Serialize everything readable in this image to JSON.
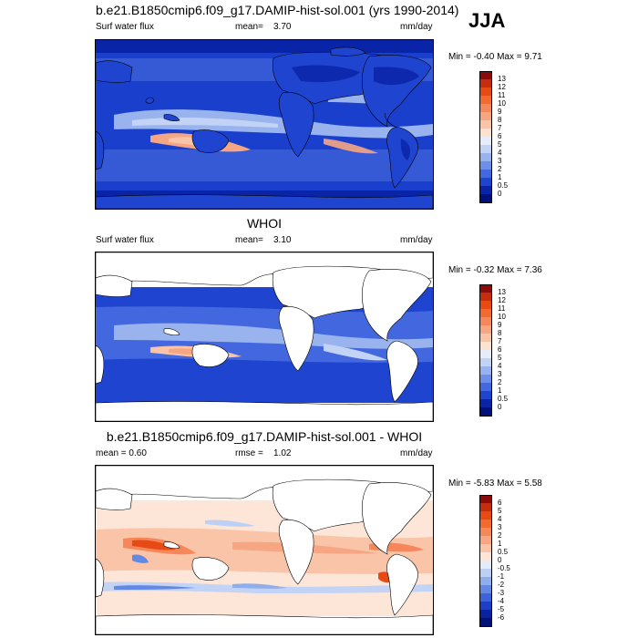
{
  "season": "JJA",
  "panels": [
    {
      "title": "b.e21.B1850cmip6.f09_g17.DAMIP-hist-sol.001 (yrs 1990-2014)",
      "left_label": "Surf water flux",
      "stat_label": "mean=",
      "stat_value": "3.70",
      "units": "mm/day",
      "minmax": "Min =  -0.40 Max =   9.71"
    },
    {
      "title": "WHOI",
      "left_label": "Surf water flux",
      "stat_label": "mean=",
      "stat_value": "3.10",
      "units": "mm/day",
      "minmax": "Min =  -0.32 Max =   7.36"
    },
    {
      "title": "b.e21.B1850cmip6.f09_g17.DAMIP-hist-sol.001 - WHOI",
      "left_label": "mean =   0.60",
      "stat_label": "rmse =",
      "stat_value": "1.02",
      "units": "mm/day",
      "minmax": "Min =  -5.83 Max =   5.58"
    }
  ],
  "colorbars": [
    {
      "ticks": [
        "13",
        "12",
        "11",
        "10",
        "9",
        "8",
        "7",
        "6",
        "5",
        "4",
        "3",
        "2",
        "1",
        "0.5",
        "0"
      ],
      "colors": [
        "#8b0a0a",
        "#c42e0e",
        "#e84a16",
        "#f26a30",
        "#f5875a",
        "#f7a683",
        "#fac4a8",
        "#fde2d2",
        "#e6ecfa",
        "#c2d3f5",
        "#98b3ee",
        "#6d8fe8",
        "#4367de",
        "#1f44cf",
        "#0a24a8",
        "#00127a"
      ]
    },
    {
      "ticks": [
        "13",
        "12",
        "11",
        "10",
        "9",
        "8",
        "7",
        "6",
        "5",
        "4",
        "3",
        "2",
        "1",
        "0.5",
        "0"
      ],
      "colors": [
        "#8b0a0a",
        "#c42e0e",
        "#e84a16",
        "#f26a30",
        "#f5875a",
        "#f7a683",
        "#fac4a8",
        "#fde2d2",
        "#e6ecfa",
        "#c2d3f5",
        "#98b3ee",
        "#6d8fe8",
        "#4367de",
        "#1f44cf",
        "#0a24a8",
        "#00127a"
      ]
    },
    {
      "ticks": [
        "6",
        "5",
        "4",
        "3",
        "2",
        "1",
        "0.5",
        "0",
        "-0.5",
        "-1",
        "-2",
        "-3",
        "-4",
        "-5",
        "-6"
      ],
      "colors": [
        "#8b0a0a",
        "#c42e0e",
        "#e84a16",
        "#f26a30",
        "#f5875a",
        "#f7a683",
        "#fac4a8",
        "#fde6d8",
        "#e4ecfa",
        "#bccff4",
        "#90aeec",
        "#6389e4",
        "#3c63da",
        "#1d3fc7",
        "#0a22a0",
        "#00127a"
      ]
    }
  ],
  "chart_data": [
    {
      "type": "heatmap",
      "title": "b.e21.B1850cmip6.f09_g17.DAMIP-hist-sol.001 (yrs 1990-2014)",
      "variable": "Surf water flux",
      "units": "mm/day",
      "mean": 3.7,
      "min": -0.4,
      "max": 9.71,
      "colorbar_levels": [
        0,
        0.5,
        1,
        2,
        3,
        4,
        5,
        6,
        7,
        8,
        9,
        10,
        11,
        12,
        13
      ]
    },
    {
      "type": "heatmap",
      "title": "WHOI",
      "variable": "Surf water flux",
      "units": "mm/day",
      "mean": 3.1,
      "min": -0.32,
      "max": 7.36,
      "colorbar_levels": [
        0,
        0.5,
        1,
        2,
        3,
        4,
        5,
        6,
        7,
        8,
        9,
        10,
        11,
        12,
        13
      ]
    },
    {
      "type": "heatmap",
      "title": "b.e21.B1850cmip6.f09_g17.DAMIP-hist-sol.001 - WHOI",
      "units": "mm/day",
      "mean": 0.6,
      "rmse": 1.02,
      "min": -5.83,
      "max": 5.58,
      "colorbar_levels": [
        -6,
        -5,
        -4,
        -3,
        -2,
        -1,
        -0.5,
        0,
        0.5,
        1,
        2,
        3,
        4,
        5,
        6
      ]
    }
  ]
}
